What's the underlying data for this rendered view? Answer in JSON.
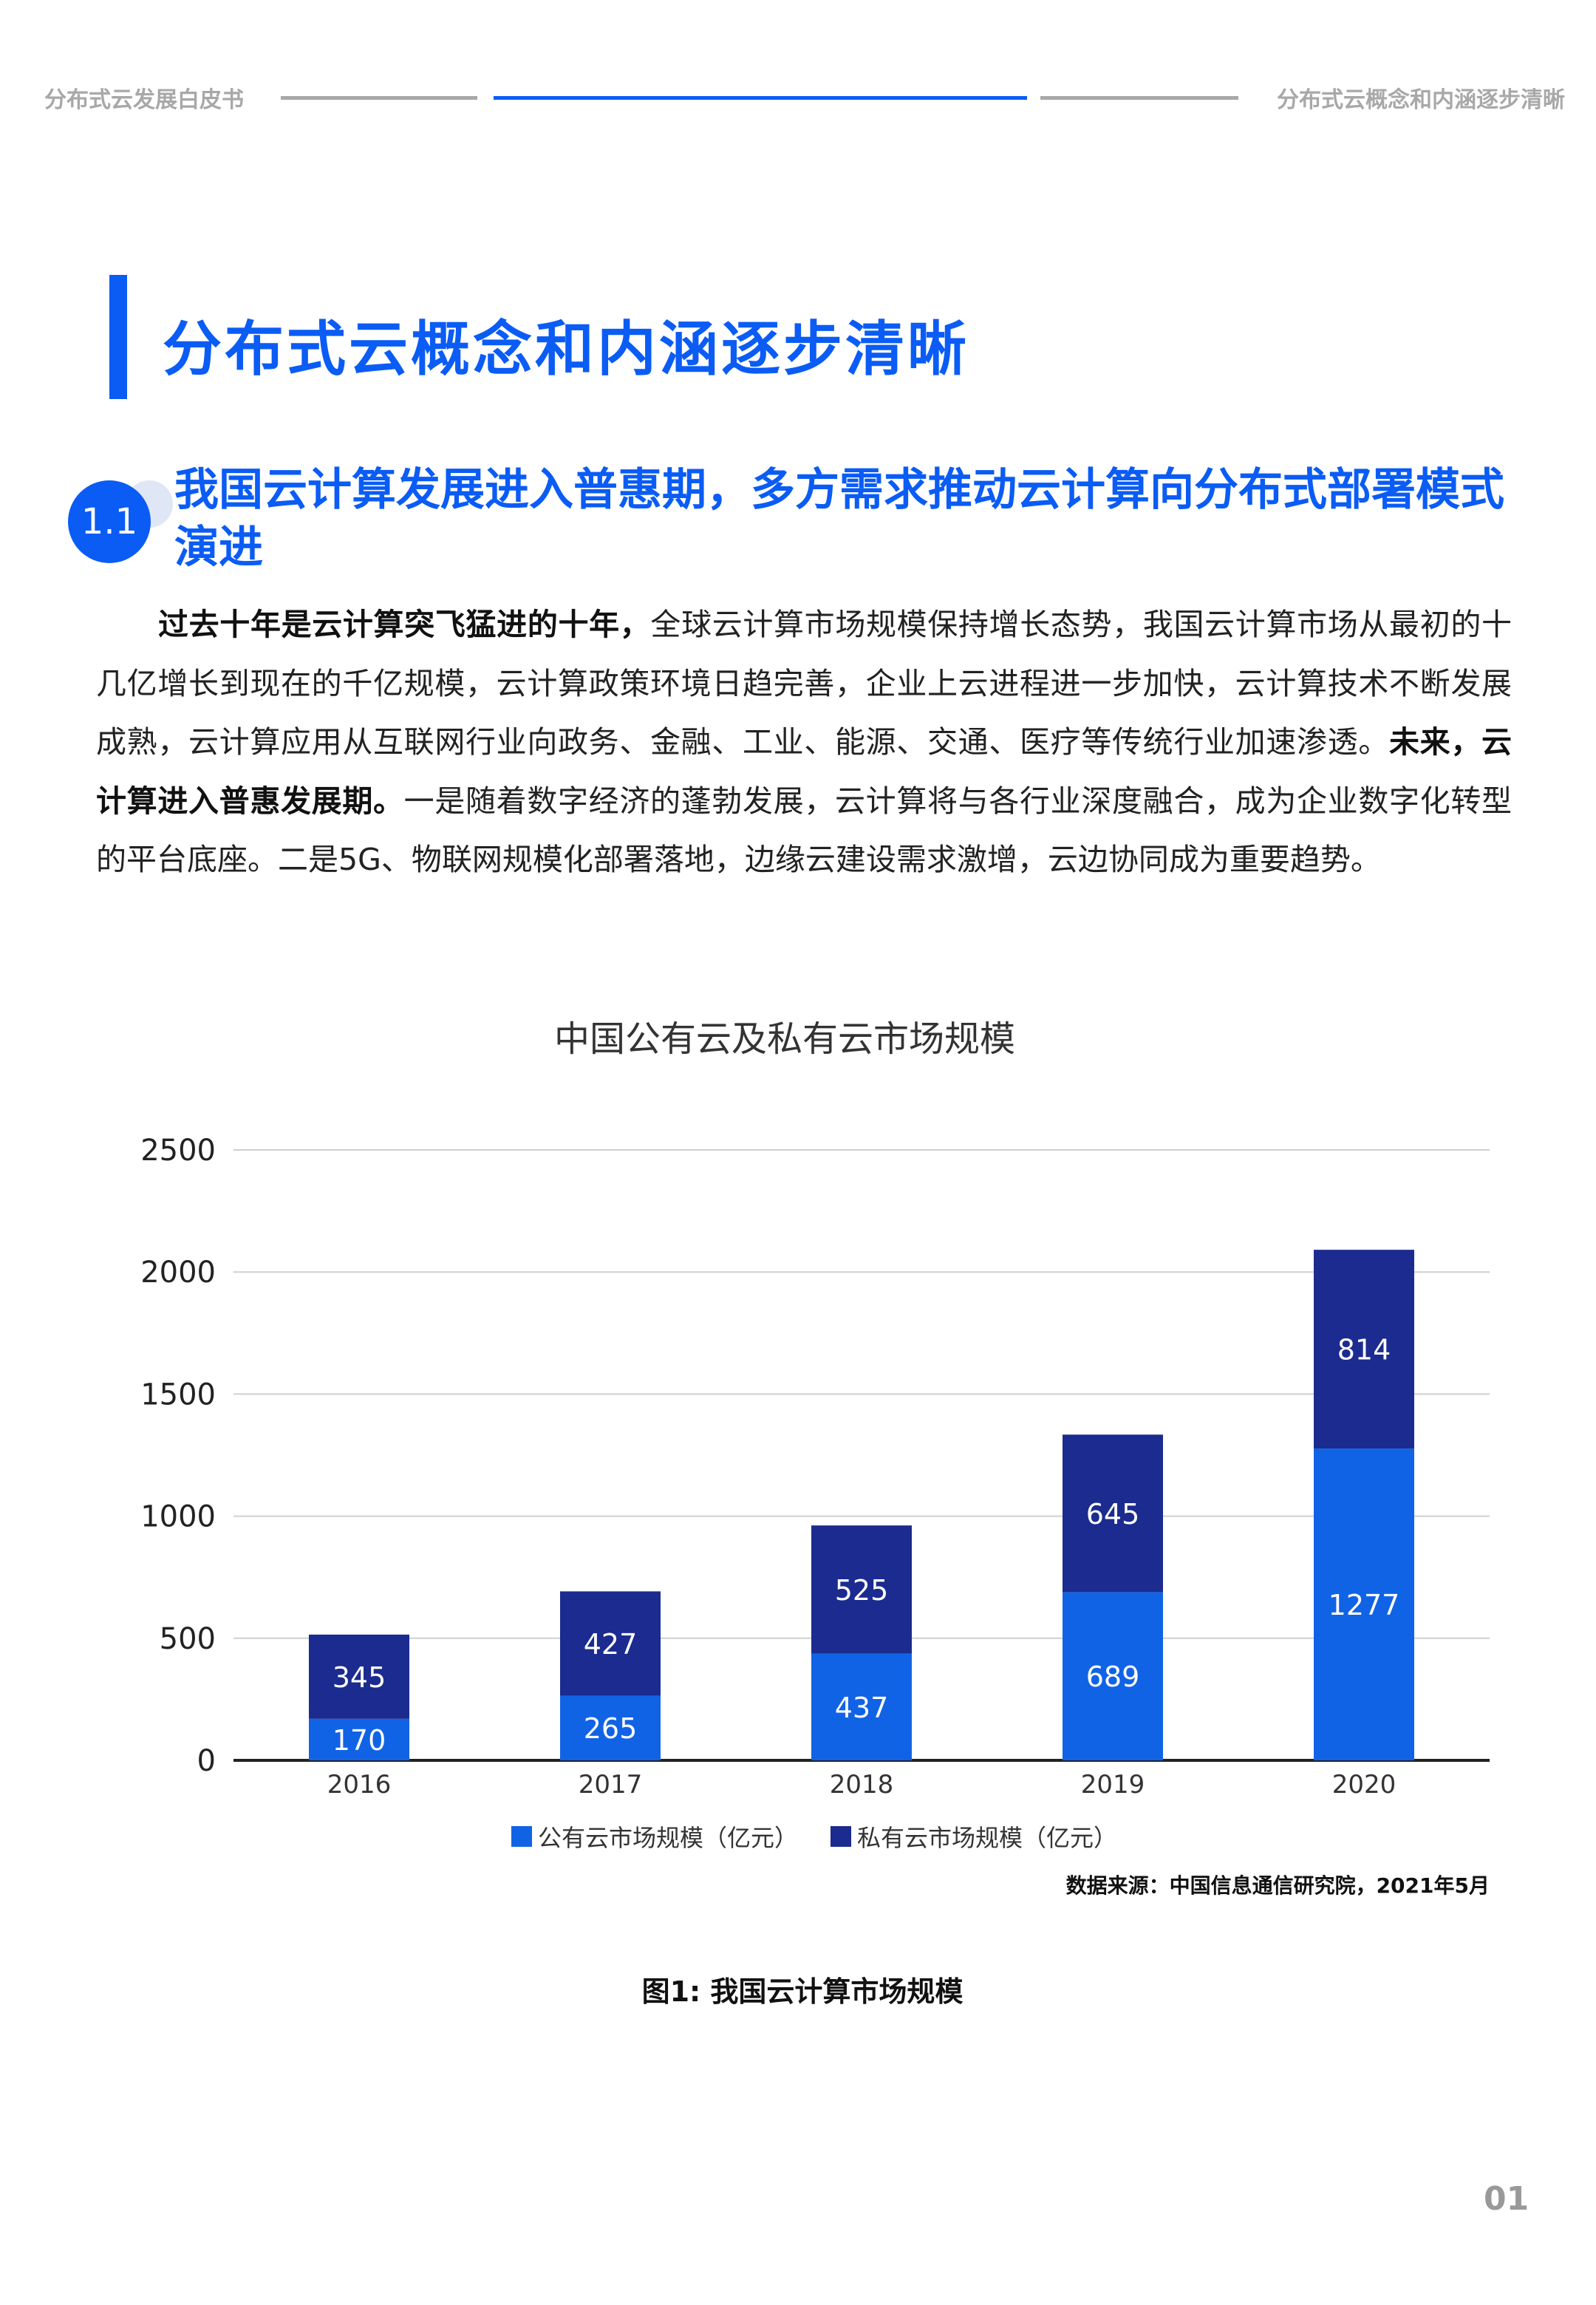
{
  "header": {
    "left": "分布式云发展白皮书",
    "right": "分布式云概念和内涵逐步清晰"
  },
  "title": "分布式云概念和内涵逐步清晰",
  "section": {
    "number": "1.1",
    "title": "我国云计算发展进入普惠期，多方需求推动云计算向分布式部署模式演进"
  },
  "body": {
    "bold1": "过去十年是云计算突飞猛进的十年，",
    "text1": "全球云计算市场规模保持增长态势，我国云计算市场从最初的十几亿增长到现在的千亿规模，云计算政策环境日趋完善，企业上云进程进一步加快，云计算技术不断发展成熟，云计算应用从互联网行业向政务、金融、工业、能源、交通、医疗等传统行业加速渗透。",
    "bold2": "未来，云计算进入普惠发展期。",
    "text2": "一是随着数字经济的蓬勃发展，云计算将与各行业深度融合，成为企业数字化转型的平台底座。二是5G、物联网规模化部署落地，边缘云建设需求激增，云边协同成为重要趋势。"
  },
  "chart_data": {
    "type": "bar",
    "stacked": true,
    "title": "中国公有云及私有云市场规模",
    "categories": [
      "2016",
      "2017",
      "2018",
      "2019",
      "2020"
    ],
    "series": [
      {
        "name": "公有云市场规模（亿元）",
        "values": [
          170,
          265,
          437,
          689,
          1277
        ],
        "color": "#1163e6"
      },
      {
        "name": "私有云市场规模（亿元）",
        "values": [
          345,
          427,
          525,
          645,
          814
        ],
        "color": "#1b2b8f"
      }
    ],
    "ylim": [
      0,
      2500
    ],
    "yticks": [
      "0",
      "500",
      "1000",
      "1500",
      "2000",
      "2500"
    ],
    "grid": true,
    "legend": "bottom"
  },
  "source": "数据来源：中国信息通信研究院，2021年5月",
  "caption": "图1: 我国云计算市场规模",
  "page_number": "01",
  "colors": {
    "accent": "#0a5cf5"
  }
}
